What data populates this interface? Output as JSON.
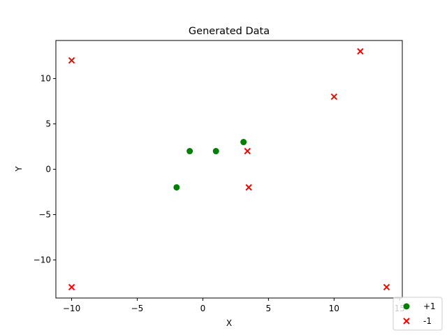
{
  "chart_data": {
    "type": "scatter",
    "title": "Generated Data",
    "xlabel": "X",
    "ylabel": "Y",
    "xlim": [
      -11.2,
      15.2
    ],
    "ylim": [
      -14.2,
      14.2
    ],
    "xticks": [
      -10,
      -5,
      0,
      5,
      10,
      15
    ],
    "yticks": [
      -10,
      -5,
      0,
      5,
      10
    ],
    "xtick_labels": [
      "−10",
      "−5",
      "0",
      "5",
      "10",
      "15"
    ],
    "ytick_labels": [
      "−10",
      "−5",
      "0",
      "5",
      "10"
    ],
    "grid": false,
    "legend_position": "lower-right",
    "series": [
      {
        "name": "+1",
        "marker": "circle",
        "color": "#008000",
        "points": [
          {
            "x": -2,
            "y": -2
          },
          {
            "x": -1,
            "y": 2
          },
          {
            "x": 1,
            "y": 2
          },
          {
            "x": 3.1,
            "y": 3
          }
        ]
      },
      {
        "name": "-1",
        "marker": "x",
        "color": "#ff0000",
        "points": [
          {
            "x": -10,
            "y": 12
          },
          {
            "x": -10,
            "y": -13
          },
          {
            "x": 3.4,
            "y": 2
          },
          {
            "x": 3.5,
            "y": -2
          },
          {
            "x": 10,
            "y": 8
          },
          {
            "x": 12,
            "y": 13
          },
          {
            "x": 14,
            "y": -13
          }
        ]
      }
    ]
  }
}
